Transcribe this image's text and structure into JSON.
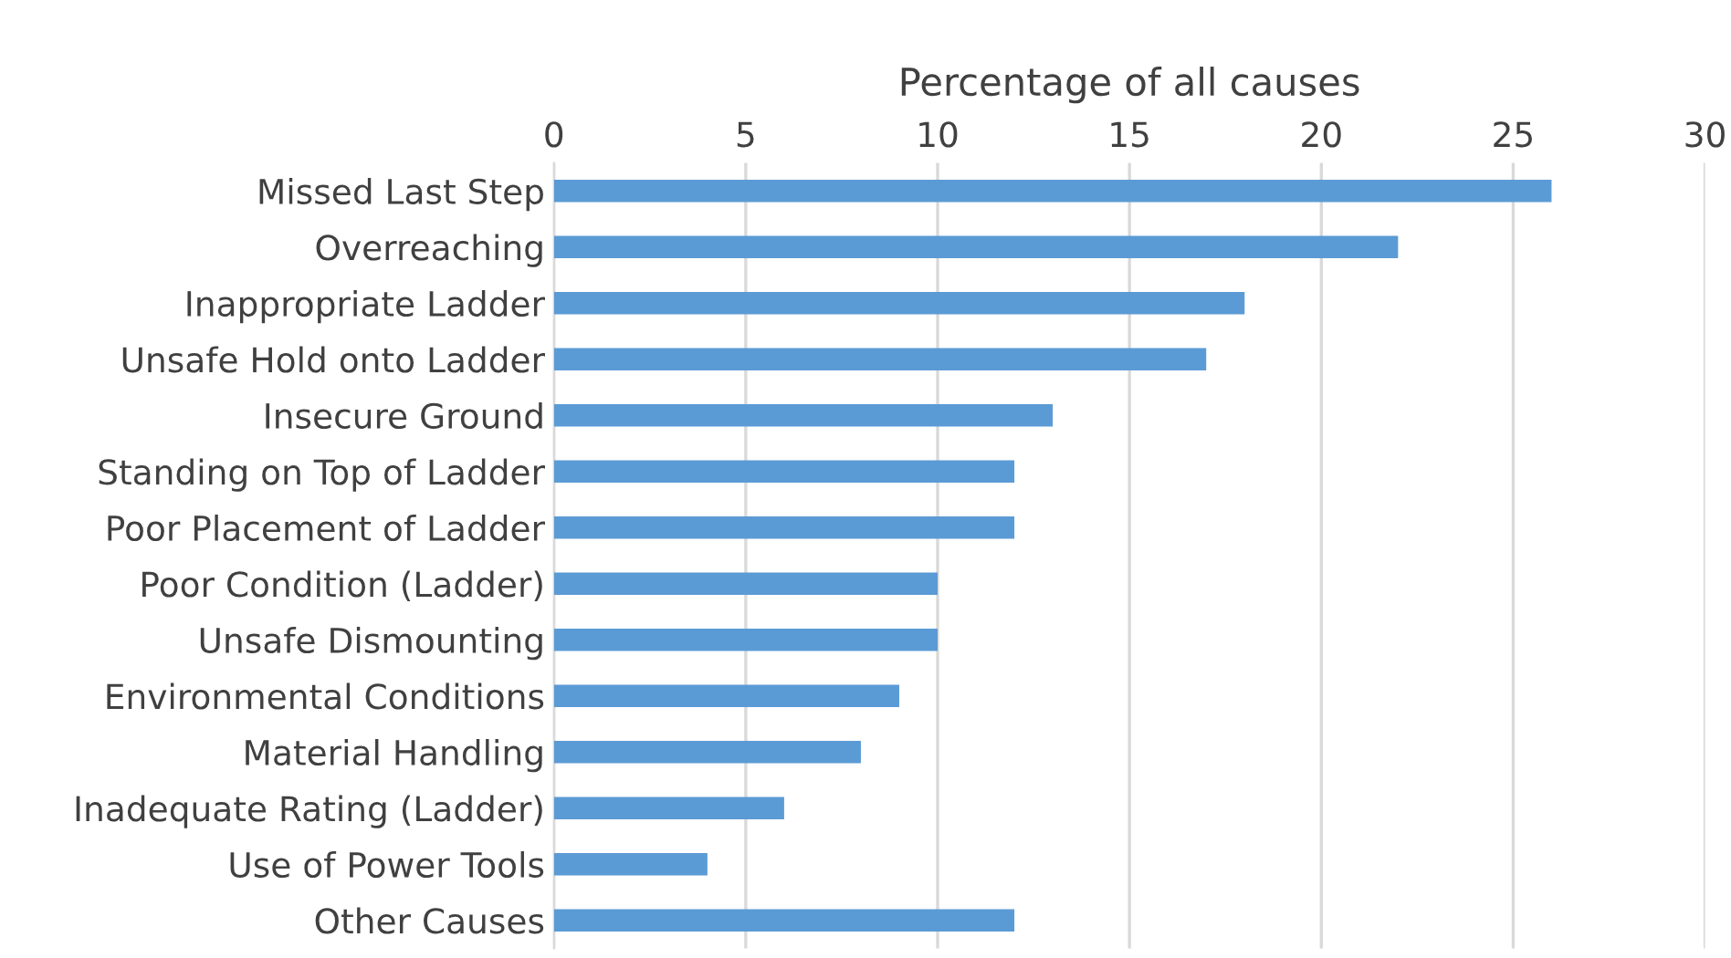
{
  "chart_data": {
    "type": "bar",
    "orientation": "horizontal",
    "xlabel": "Percentage of all causes",
    "categories": [
      "Missed Last Step",
      "Overreaching",
      "Inappropriate Ladder",
      "Unsafe Hold onto Ladder",
      "Insecure Ground",
      "Standing on Top of Ladder",
      "Poor Placement of Ladder",
      "Poor Condition (Ladder)",
      "Unsafe Dismounting",
      "Environmental Conditions",
      "Material Handling",
      "Inadequate Rating (Ladder)",
      "Use of Power Tools",
      "Other Causes"
    ],
    "values": [
      26,
      22,
      18,
      17,
      13,
      12,
      12,
      10,
      10,
      9,
      8,
      6,
      4,
      12
    ],
    "color": "#5b9bd5",
    "xlim": [
      0,
      30
    ],
    "xticks": [
      0,
      5,
      10,
      15,
      20,
      25,
      30
    ],
    "grid": "x"
  }
}
